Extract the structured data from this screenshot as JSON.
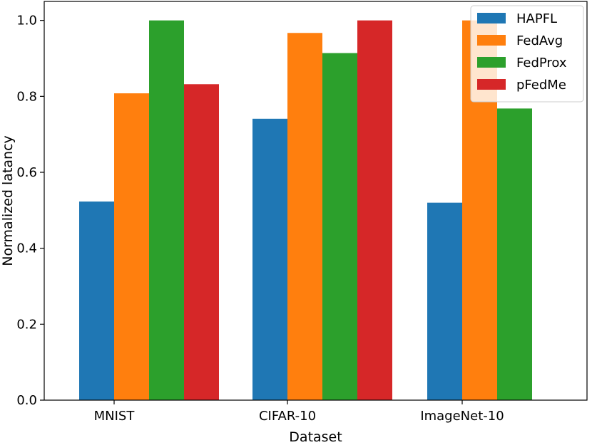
{
  "chart_data": {
    "type": "bar",
    "title": "",
    "xlabel": "Dataset",
    "ylabel": "Normalized latancy",
    "categories": [
      "MNIST",
      "CIFAR-10",
      "ImageNet-10"
    ],
    "series": [
      {
        "name": "HAPFL",
        "color": "#1f77b4",
        "values": [
          0.523,
          0.741,
          0.52
        ]
      },
      {
        "name": "FedAvg",
        "color": "#ff7f0e",
        "values": [
          0.808,
          0.967,
          1.0
        ]
      },
      {
        "name": "FedProx",
        "color": "#2ca02c",
        "values": [
          1.0,
          0.914,
          0.768
        ]
      },
      {
        "name": "pFedMe",
        "color": "#d62728",
        "values": [
          0.832,
          1.0,
          0
        ]
      }
    ],
    "ylim": [
      0,
      1.05
    ],
    "yticks": [
      "0.0",
      "0.2",
      "0.4",
      "0.6",
      "0.8",
      "1.0"
    ],
    "grid": false,
    "legend_position": "top-right"
  }
}
